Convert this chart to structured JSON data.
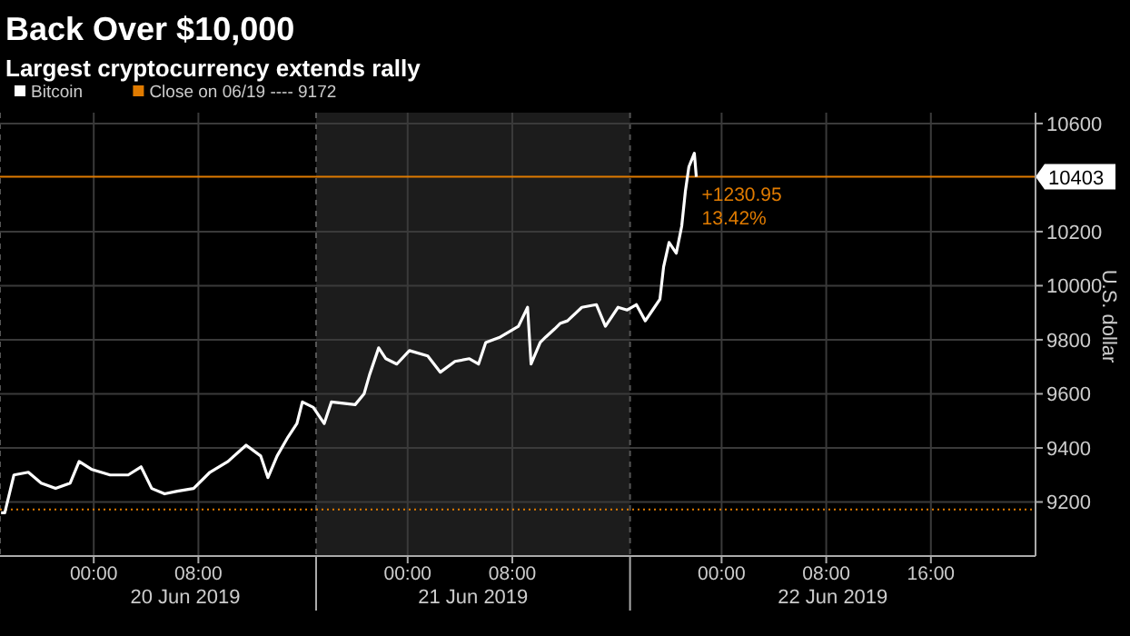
{
  "chart_data": {
    "type": "line",
    "title": "Back Over $10,000",
    "subtitle": "Largest cryptocurrency extends rally",
    "ylabel": "U.S. dollar",
    "series": [
      {
        "name": "Bitcoin",
        "color": "#ffffff",
        "x": [
          "2019-06-19T16:55",
          "2019-06-19T17:12",
          "2019-06-19T17:54",
          "2019-06-19T19:00",
          "2019-06-19T19:59",
          "2019-06-19T21:05",
          "2019-06-19T22:12",
          "2019-06-19T22:53",
          "2019-06-19T23:52",
          "2019-06-20T01:15",
          "2019-06-20T02:38",
          "2019-06-20T03:37",
          "2019-06-20T04:26",
          "2019-06-20T05:25",
          "2019-06-20T06:23",
          "2019-06-20T07:38",
          "2019-06-20T08:53",
          "2019-06-20T10:16",
          "2019-06-20T11:39",
          "2019-06-20T12:46",
          "2019-06-20T13:19",
          "2019-06-20T14:01",
          "2019-06-20T14:51",
          "2019-06-20T15:32",
          "2019-06-20T15:57",
          "2019-06-20T16:47",
          "2019-06-20T17:37",
          "2019-06-20T18:10",
          "2019-06-20T19:59",
          "2019-06-20T20:40",
          "2019-06-20T21:05",
          "2019-06-20T21:47",
          "2019-06-20T22:20",
          "2019-06-20T23:10",
          "2019-06-21T00:08",
          "2019-06-21T01:32",
          "2019-06-21T02:30",
          "2019-06-21T03:37",
          "2019-06-21T04:43",
          "2019-06-21T05:25",
          "2019-06-21T05:58",
          "2019-06-21T07:05",
          "2019-06-21T08:28",
          "2019-06-21T09:10",
          "2019-06-21T09:26",
          "2019-06-21T10:08",
          "2019-06-21T10:33",
          "2019-06-21T11:14",
          "2019-06-21T11:39",
          "2019-06-21T12:13",
          "2019-06-21T13:19",
          "2019-06-21T14:26",
          "2019-06-21T15:07",
          "2019-06-21T16:05",
          "2019-06-21T16:47",
          "2019-06-21T17:29",
          "2019-06-21T18:10",
          "2019-06-21T18:52",
          "2019-06-21T19:17",
          "2019-06-21T19:34",
          "2019-06-21T19:59",
          "2019-06-21T20:32",
          "2019-06-21T20:57",
          "2019-06-21T21:14",
          "2019-06-21T21:30",
          "2019-06-21T21:55",
          "2019-06-21T22:04"
        ],
        "values": [
          9160,
          9160,
          9300,
          9310,
          9270,
          9250,
          9270,
          9350,
          9320,
          9300,
          9300,
          9330,
          9250,
          9230,
          9240,
          9250,
          9310,
          9350,
          9410,
          9370,
          9290,
          9370,
          9440,
          9490,
          9570,
          9550,
          9490,
          9570,
          9560,
          9600,
          9670,
          9770,
          9730,
          9710,
          9760,
          9740,
          9680,
          9720,
          9730,
          9710,
          9790,
          9810,
          9850,
          9920,
          9710,
          9790,
          9810,
          9840,
          9860,
          9870,
          9920,
          9930,
          9850,
          9920,
          9910,
          9930,
          9870,
          9920,
          9950,
          10070,
          10160,
          10120,
          10220,
          10350,
          10440,
          10490,
          10403
        ]
      }
    ],
    "xlim": [
      "2019-06-19T16:50",
      "2019-06-23T00:00"
    ],
    "xticks": [
      {
        "value": "2019-06-20T00:00",
        "label": "00:00"
      },
      {
        "value": "2019-06-20T08:00",
        "label": "08:00"
      },
      {
        "value": "2019-06-20T17:00",
        "label": null
      },
      {
        "value": "2019-06-21T00:00",
        "label": "00:00"
      },
      {
        "value": "2019-06-21T08:00",
        "label": "08:00"
      },
      {
        "value": "2019-06-21T17:00",
        "label": null
      },
      {
        "value": "2019-06-22T00:00",
        "label": "00:00"
      },
      {
        "value": "2019-06-22T08:00",
        "label": "08:00"
      },
      {
        "value": "2019-06-22T16:00",
        "label": "16:00"
      }
    ],
    "ylim": [
      9000,
      10640
    ],
    "yticks": [
      9200,
      9400,
      9600,
      9800,
      10000,
      10200,
      10600
    ],
    "ref_lines": [
      {
        "axis": "y",
        "value": 9172,
        "label": "Close on 06/19 ---- 9172",
        "color": "#e07b00",
        "line_style": "dotted"
      },
      {
        "axis": "y",
        "value": 10403,
        "label": "10403",
        "color": "#e07b00",
        "line_style": "solid"
      }
    ],
    "bands": [
      {
        "axis": "x",
        "from": "2019-06-20T17:00",
        "to": "2019-06-21T17:00",
        "color": "#1c1c1c"
      }
    ],
    "annotations": [
      "+1230.95",
      "13.42%",
      "20 Jun 2019",
      "21 Jun 2019",
      "22 Jun 2019"
    ],
    "grid": true,
    "legend": "top left",
    "marker": "none",
    "line_style": "solid"
  }
}
